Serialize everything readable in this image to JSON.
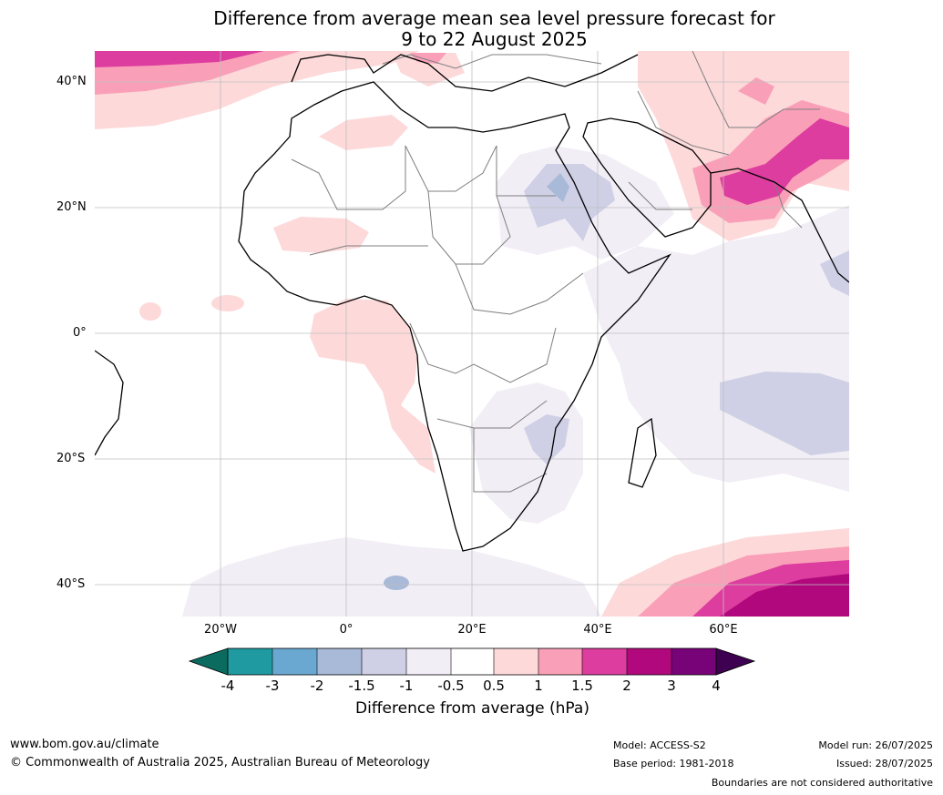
{
  "title": {
    "line1": "Difference from average mean sea level pressure forecast for",
    "line2": "9 to 22 August 2025"
  },
  "map": {
    "lat_labels": [
      "40°N",
      "20°N",
      "0°",
      "20°S",
      "40°S"
    ],
    "lon_labels": [
      "20°W",
      "0°",
      "20°E",
      "40°E",
      "60°E"
    ]
  },
  "colorbar": {
    "title": "Difference from average (hPa)",
    "tick_labels": [
      "-4",
      "-3",
      "-2",
      "-1.5",
      "-1",
      "-0.5",
      "0.5",
      "1",
      "1.5",
      "2",
      "3",
      "4"
    ],
    "colors": [
      "#0b6b5f",
      "#1f9aa0",
      "#6aa8d2",
      "#a8bad7",
      "#cfd0e5",
      "#f2eef6",
      "#ffffff",
      "#fdd9da",
      "#f9a0b8",
      "#dd3d9e",
      "#b1097d",
      "#780278",
      "#3e0050"
    ]
  },
  "footer": {
    "website": "www.bom.gov.au/climate",
    "copyright": "© Commonwealth of Australia 2025, Australian Bureau of Meteorology",
    "model": "Model: ACCESS-S2",
    "base_period": "Base period: 1981-2018",
    "model_run": "Model run: 26/07/2025",
    "issued": "Issued: 28/07/2025",
    "disclaimer": "Boundaries are not considered authoritative"
  }
}
